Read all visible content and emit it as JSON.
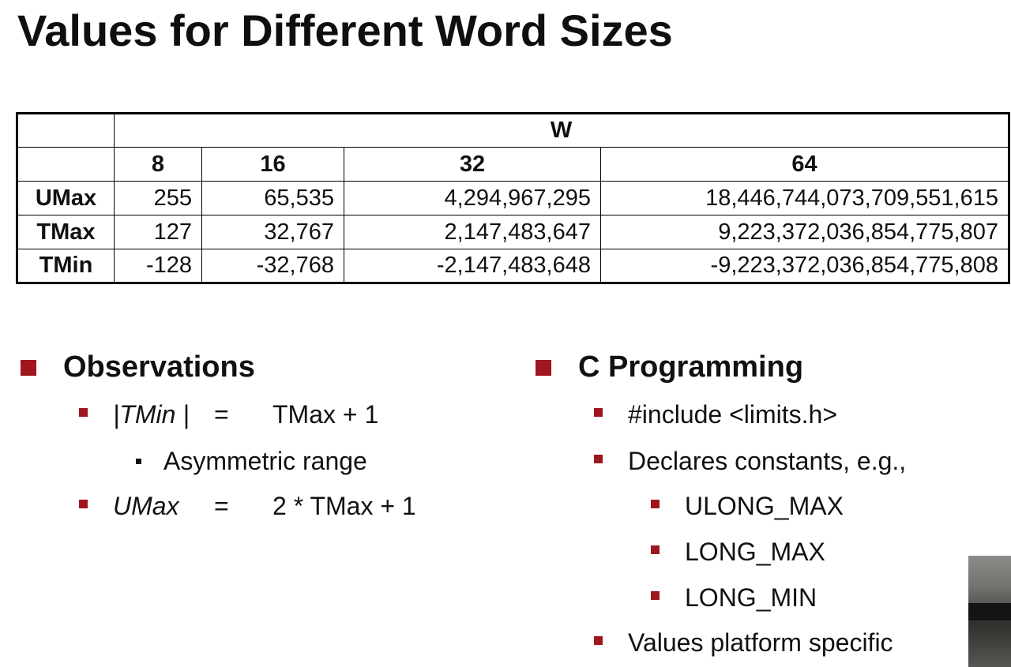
{
  "slide": {
    "title": "Values for Different Word Sizes"
  },
  "table": {
    "group_header": "W",
    "columns": [
      "8",
      "16",
      "32",
      "64"
    ],
    "rows": [
      {
        "label": "UMax",
        "values": [
          "255",
          "65,535",
          "4,294,967,295",
          "18,446,744,073,709,551,615"
        ]
      },
      {
        "label": "TMax",
        "values": [
          "127",
          "32,767",
          "2,147,483,647",
          "9,223,372,036,854,775,807"
        ]
      },
      {
        "label": "TMin",
        "values": [
          "-128",
          "-32,768",
          "-2,147,483,648",
          "-9,223,372,036,854,775,808"
        ]
      }
    ]
  },
  "observations": {
    "heading": "Observations",
    "formula1": {
      "lhs": "|TMin |",
      "eq": "=",
      "rhs": "TMax + 1"
    },
    "sub_bullet": "Asymmetric range",
    "formula2": {
      "lhs": "UMax",
      "eq": "=",
      "rhs": "2 * TMax + 1"
    }
  },
  "c_programming": {
    "heading": "C Programming",
    "items": [
      "#include <limits.h>",
      "Declares constants, e.g.,",
      "Values platform specific"
    ],
    "constants": [
      "ULONG_MAX",
      "LONG_MAX",
      "LONG_MIN"
    ]
  },
  "colors": {
    "bullet_accent": "#a0161e",
    "text": "#111111"
  }
}
